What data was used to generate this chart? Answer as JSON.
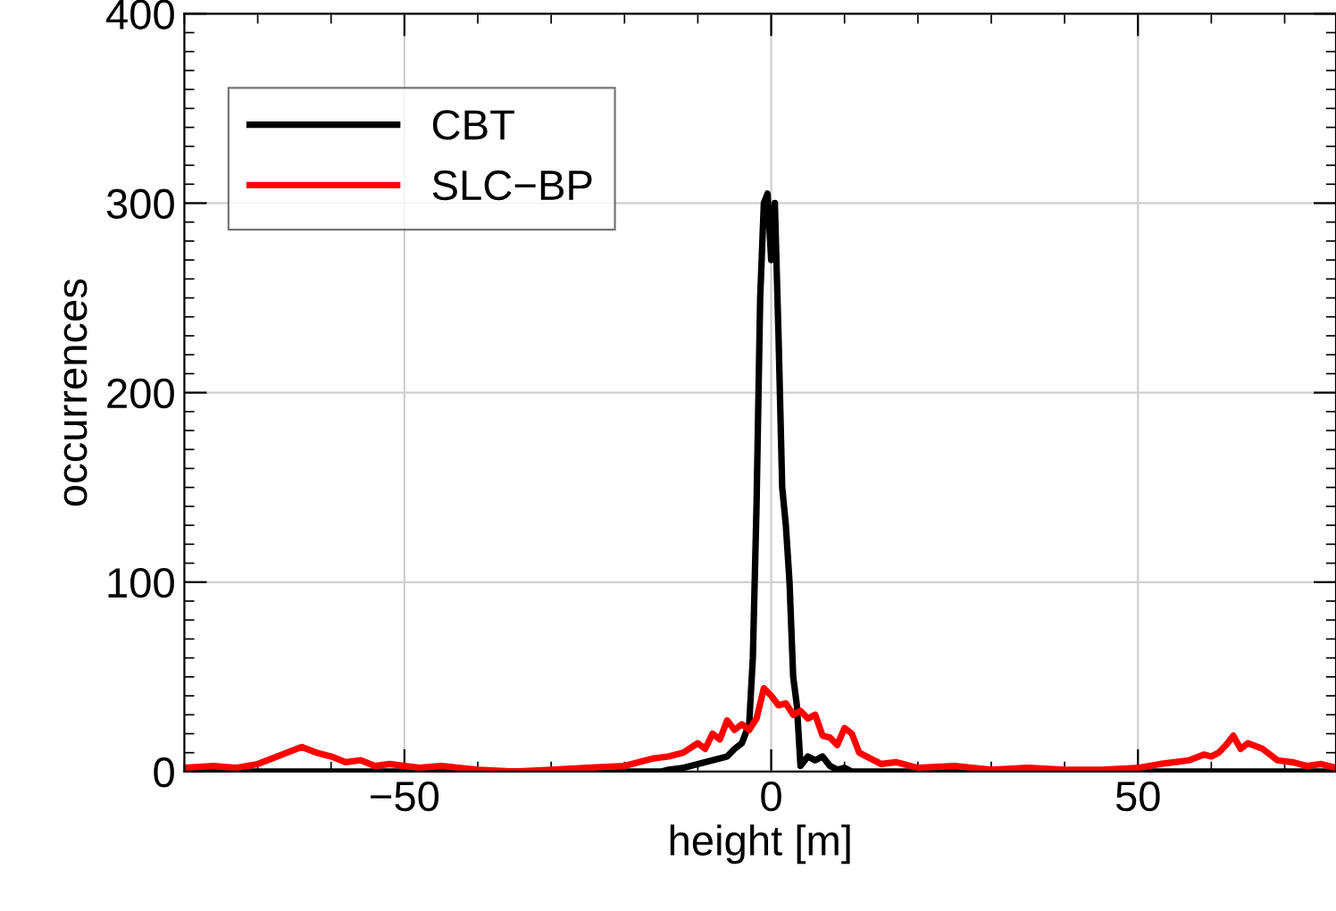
{
  "chart_data": {
    "type": "line",
    "xlabel": "height [m]",
    "ylabel": "occurrences",
    "xlim": [
      -80,
      77
    ],
    "ylim": [
      0,
      400
    ],
    "xticks": [
      {
        "value": -50,
        "label": "−50"
      },
      0,
      50
    ],
    "yticks": [
      0,
      100,
      200,
      300,
      400
    ],
    "grid": true,
    "legend": "top left",
    "marker": "none",
    "line_style": "solid",
    "series": [
      {
        "name": "CBT",
        "color": "#000000",
        "x": [
          -80,
          -40,
          -15,
          -14,
          -12,
          -10,
          -8,
          -6,
          -5,
          -4,
          -3,
          -2.5,
          -2,
          -1.5,
          -1,
          -0.5,
          0,
          0.5,
          1,
          1.5,
          2,
          2.5,
          3,
          3.5,
          4,
          5,
          6,
          7,
          8,
          9,
          10,
          11,
          40,
          77
        ],
        "values": [
          0,
          0,
          0,
          1,
          2,
          4,
          6,
          8,
          12,
          15,
          25,
          60,
          140,
          250,
          300,
          305,
          270,
          300,
          230,
          150,
          130,
          100,
          50,
          35,
          3,
          8,
          6,
          8,
          3,
          1,
          2,
          0,
          0,
          0
        ]
      },
      {
        "name": "SLC−BP",
        "color": "#ff0000",
        "x": [
          -80,
          -76,
          -73,
          -70,
          -68,
          -66,
          -64,
          -62,
          -60,
          -58,
          -56,
          -54,
          -52,
          -50,
          -48,
          -45,
          -40,
          -35,
          -30,
          -25,
          -20,
          -18,
          -16,
          -14,
          -12,
          -10,
          -9,
          -8,
          -7,
          -6,
          -5,
          -4,
          -3,
          -2,
          -1,
          0,
          1,
          2,
          3,
          4,
          5,
          6,
          7,
          8,
          9,
          10,
          11,
          12,
          13,
          14,
          15,
          17,
          20,
          25,
          30,
          35,
          40,
          45,
          50,
          53,
          55,
          57,
          59,
          60,
          61,
          62,
          63,
          64,
          65,
          67,
          69,
          71,
          73,
          75,
          77
        ],
        "values": [
          2,
          3,
          2,
          4,
          7,
          10,
          13,
          10,
          8,
          5,
          6,
          3,
          4,
          3,
          2,
          3,
          1,
          0,
          1,
          2,
          3,
          5,
          7,
          8,
          10,
          15,
          12,
          20,
          17,
          27,
          22,
          25,
          22,
          28,
          44,
          40,
          35,
          36,
          30,
          32,
          28,
          30,
          19,
          18,
          14,
          23,
          20,
          10,
          8,
          6,
          4,
          5,
          2,
          3,
          1,
          2,
          1,
          1,
          2,
          4,
          5,
          6,
          9,
          8,
          10,
          14,
          19,
          12,
          15,
          12,
          6,
          5,
          3,
          4,
          2
        ]
      }
    ]
  }
}
